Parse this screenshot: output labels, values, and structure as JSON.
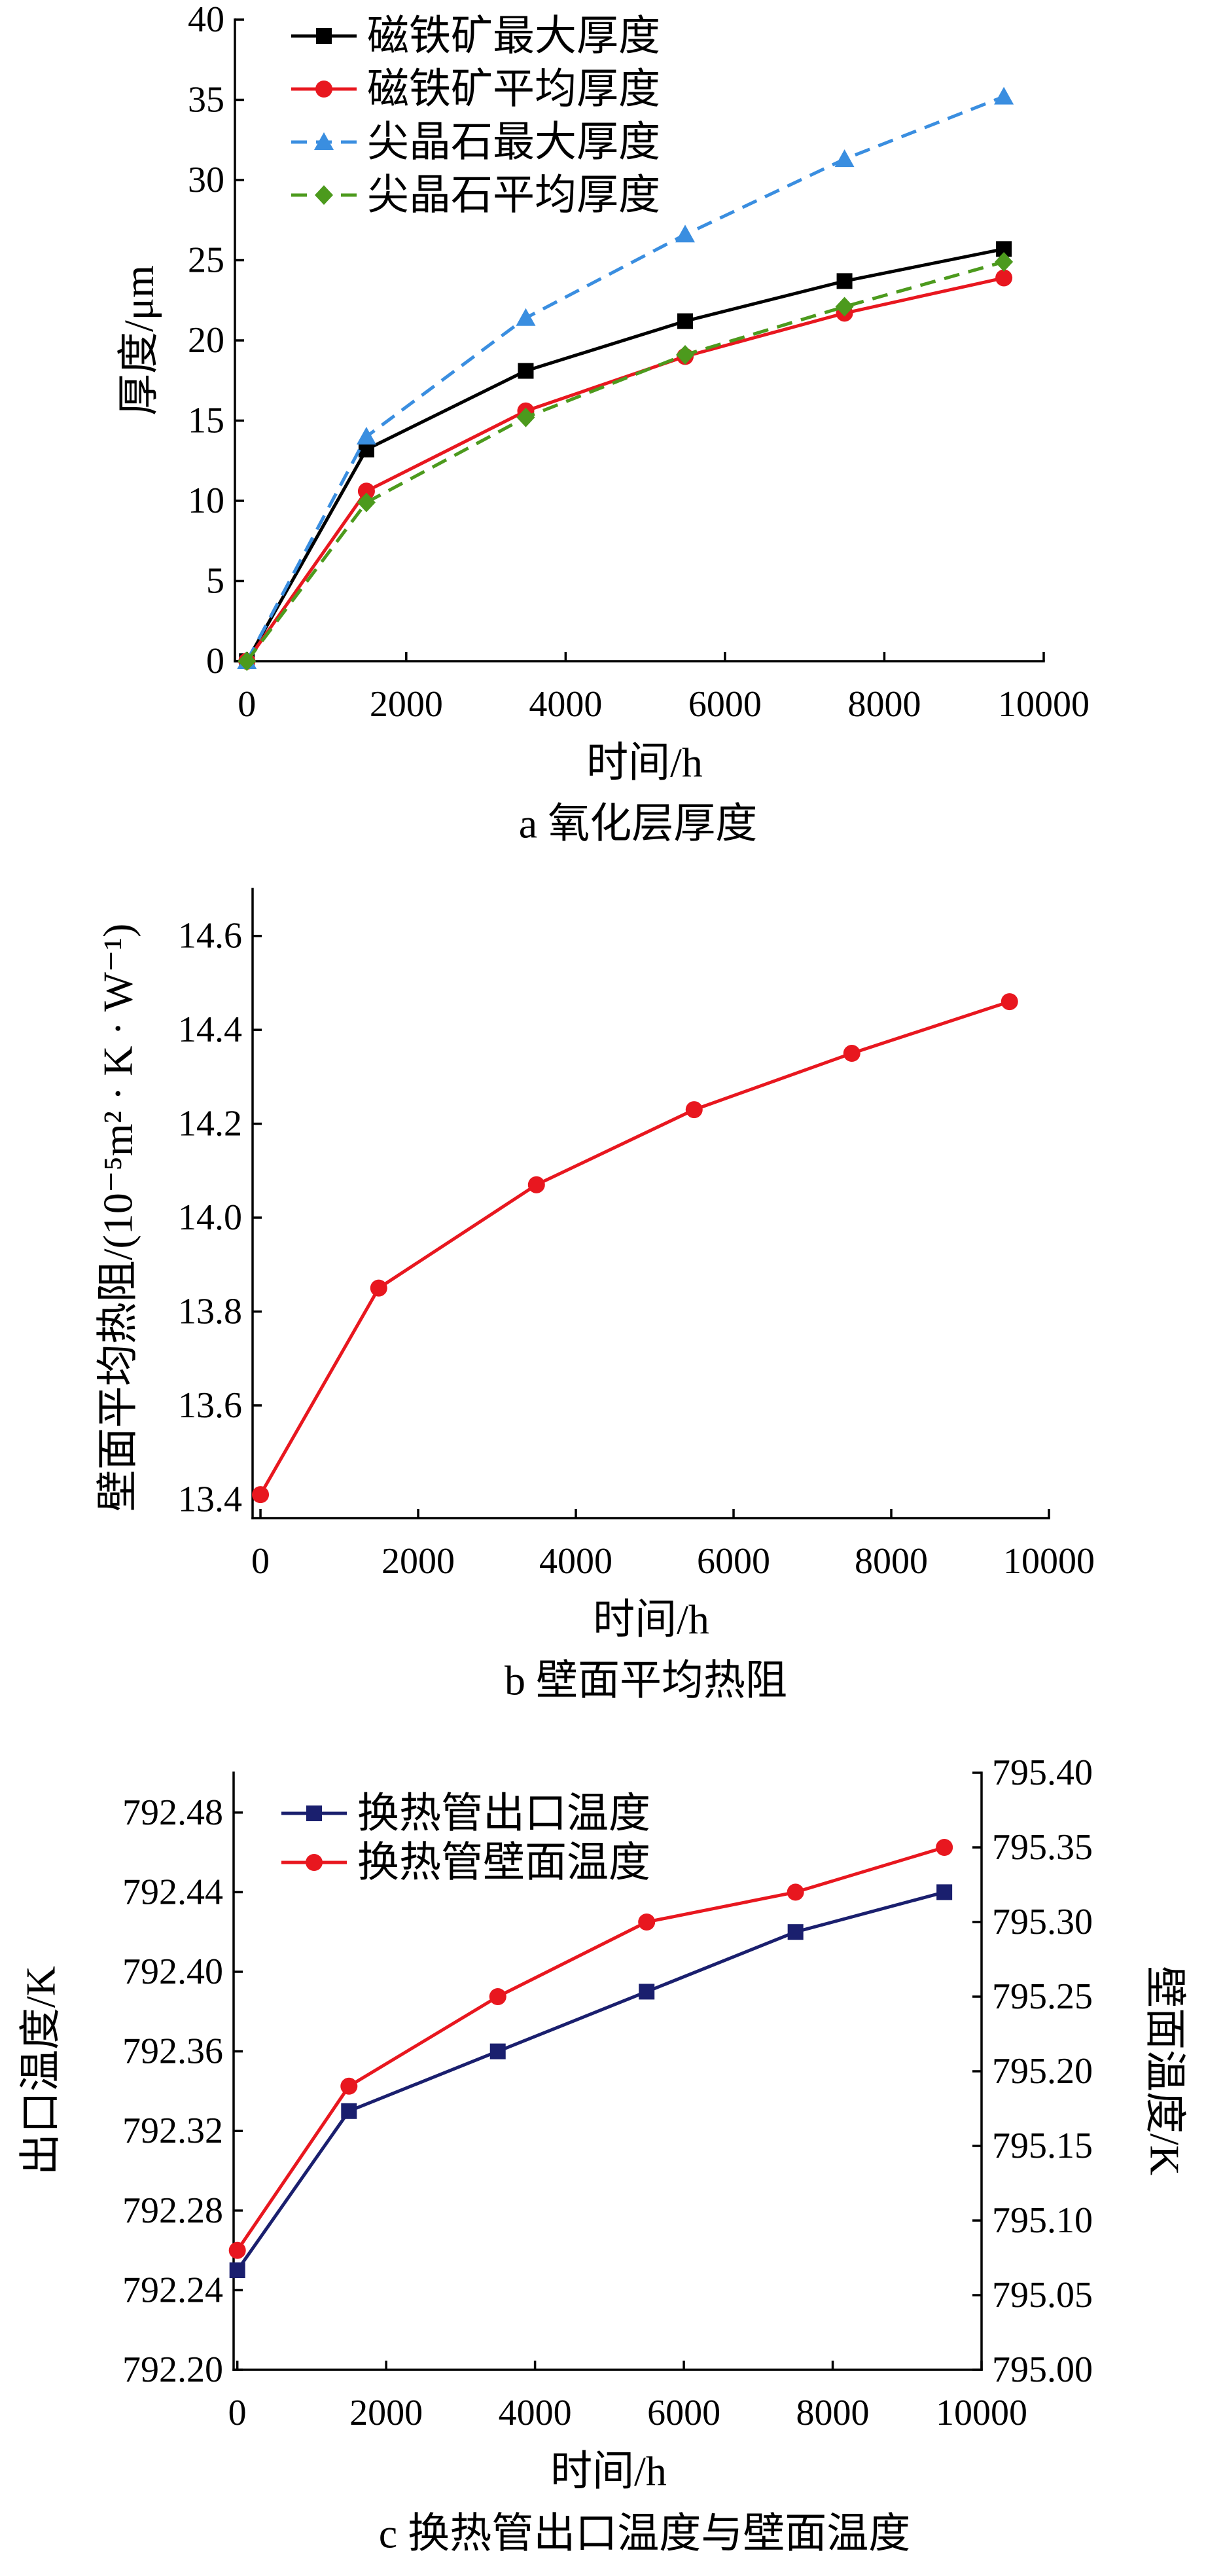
{
  "chart_data": [
    {
      "type": "line",
      "caption": "a 氧化层厚度",
      "xlabel": "时间/h",
      "ylabel": "厚度/μm",
      "xlim": [
        -150,
        10000
      ],
      "ylim": [
        0,
        40
      ],
      "xticks": [
        "0",
        "2000",
        "4000",
        "6000",
        "8000",
        "10000"
      ],
      "yticks": [
        "0",
        "5",
        "10",
        "15",
        "20",
        "25",
        "30",
        "35",
        "40"
      ],
      "grid": false,
      "legend": "top-left",
      "x": [
        0,
        1500,
        3500,
        5500,
        7500,
        9500
      ],
      "series": [
        {
          "name": "磁铁矿最大厚度",
          "values": [
            0,
            13.2,
            18.1,
            21.2,
            23.7,
            25.7
          ],
          "color": "#000000",
          "marker": "square",
          "line": "solid"
        },
        {
          "name": "磁铁矿平均厚度",
          "values": [
            0,
            10.6,
            15.6,
            19.0,
            21.7,
            23.9
          ],
          "color": "#e8171f",
          "marker": "circle",
          "line": "solid"
        },
        {
          "name": "尖晶石最大厚度",
          "values": [
            0,
            14.0,
            21.4,
            26.6,
            31.3,
            35.2
          ],
          "color": "#3a8ee0",
          "marker": "triangle",
          "line": "dashed"
        },
        {
          "name": "尖晶石平均厚度",
          "values": [
            0,
            9.9,
            15.2,
            19.1,
            22.1,
            24.9
          ],
          "color": "#4c9a1d",
          "marker": "diamond",
          "line": "dashed"
        }
      ]
    },
    {
      "type": "line",
      "caption": "b 壁面平均热阻",
      "xlabel": "时间/h",
      "ylabel": "壁面平均热阻/(10⁻⁵m² · K · W⁻¹)",
      "xlim": [
        -100,
        10000
      ],
      "ylim": [
        13.36,
        14.7
      ],
      "xticks": [
        "0",
        "2000",
        "4000",
        "6000",
        "8000",
        "10000"
      ],
      "yticks": [
        "13.4",
        "13.6",
        "13.8",
        "14.0",
        "14.2",
        "14.4",
        "14.6"
      ],
      "grid": false,
      "x": [
        0,
        1500,
        3500,
        5500,
        7500,
        9500
      ],
      "series": [
        {
          "values": [
            13.41,
            13.85,
            14.07,
            14.23,
            14.35,
            14.46
          ],
          "color": "#e8171f",
          "marker": "circle",
          "line": "solid"
        }
      ]
    },
    {
      "type": "line",
      "caption": "c 换热管出口温度与壁面温度",
      "xlabel": "时间/h",
      "ylabel": "出口温度/K",
      "y2label": "壁面温度/K",
      "xlim": [
        -50,
        10000
      ],
      "ylim": [
        792.2,
        792.5
      ],
      "y2lim": [
        795.0,
        795.4
      ],
      "xticks": [
        "0",
        "2000",
        "4000",
        "6000",
        "8000",
        "10000"
      ],
      "yticks": [
        "792.20",
        "792.24",
        "792.28",
        "792.32",
        "792.36",
        "792.40",
        "792.44",
        "792.48"
      ],
      "y2ticks": [
        "795.00",
        "795.05",
        "795.10",
        "795.15",
        "795.20",
        "795.25",
        "795.30",
        "795.35",
        "795.40"
      ],
      "grid": false,
      "legend": "top-left",
      "x": [
        0,
        1500,
        3500,
        5500,
        7500,
        9500
      ],
      "series": [
        {
          "name": "换热管出口温度",
          "axis": "left",
          "values": [
            792.25,
            792.33,
            792.36,
            792.39,
            792.42,
            792.44
          ],
          "color": "#1a1f6e",
          "marker": "square",
          "line": "solid"
        },
        {
          "name": "换热管壁面温度",
          "axis": "right",
          "values": [
            795.08,
            795.19,
            795.25,
            795.3,
            795.32,
            795.35
          ],
          "color": "#e8171f",
          "marker": "circle",
          "line": "solid"
        }
      ]
    }
  ]
}
